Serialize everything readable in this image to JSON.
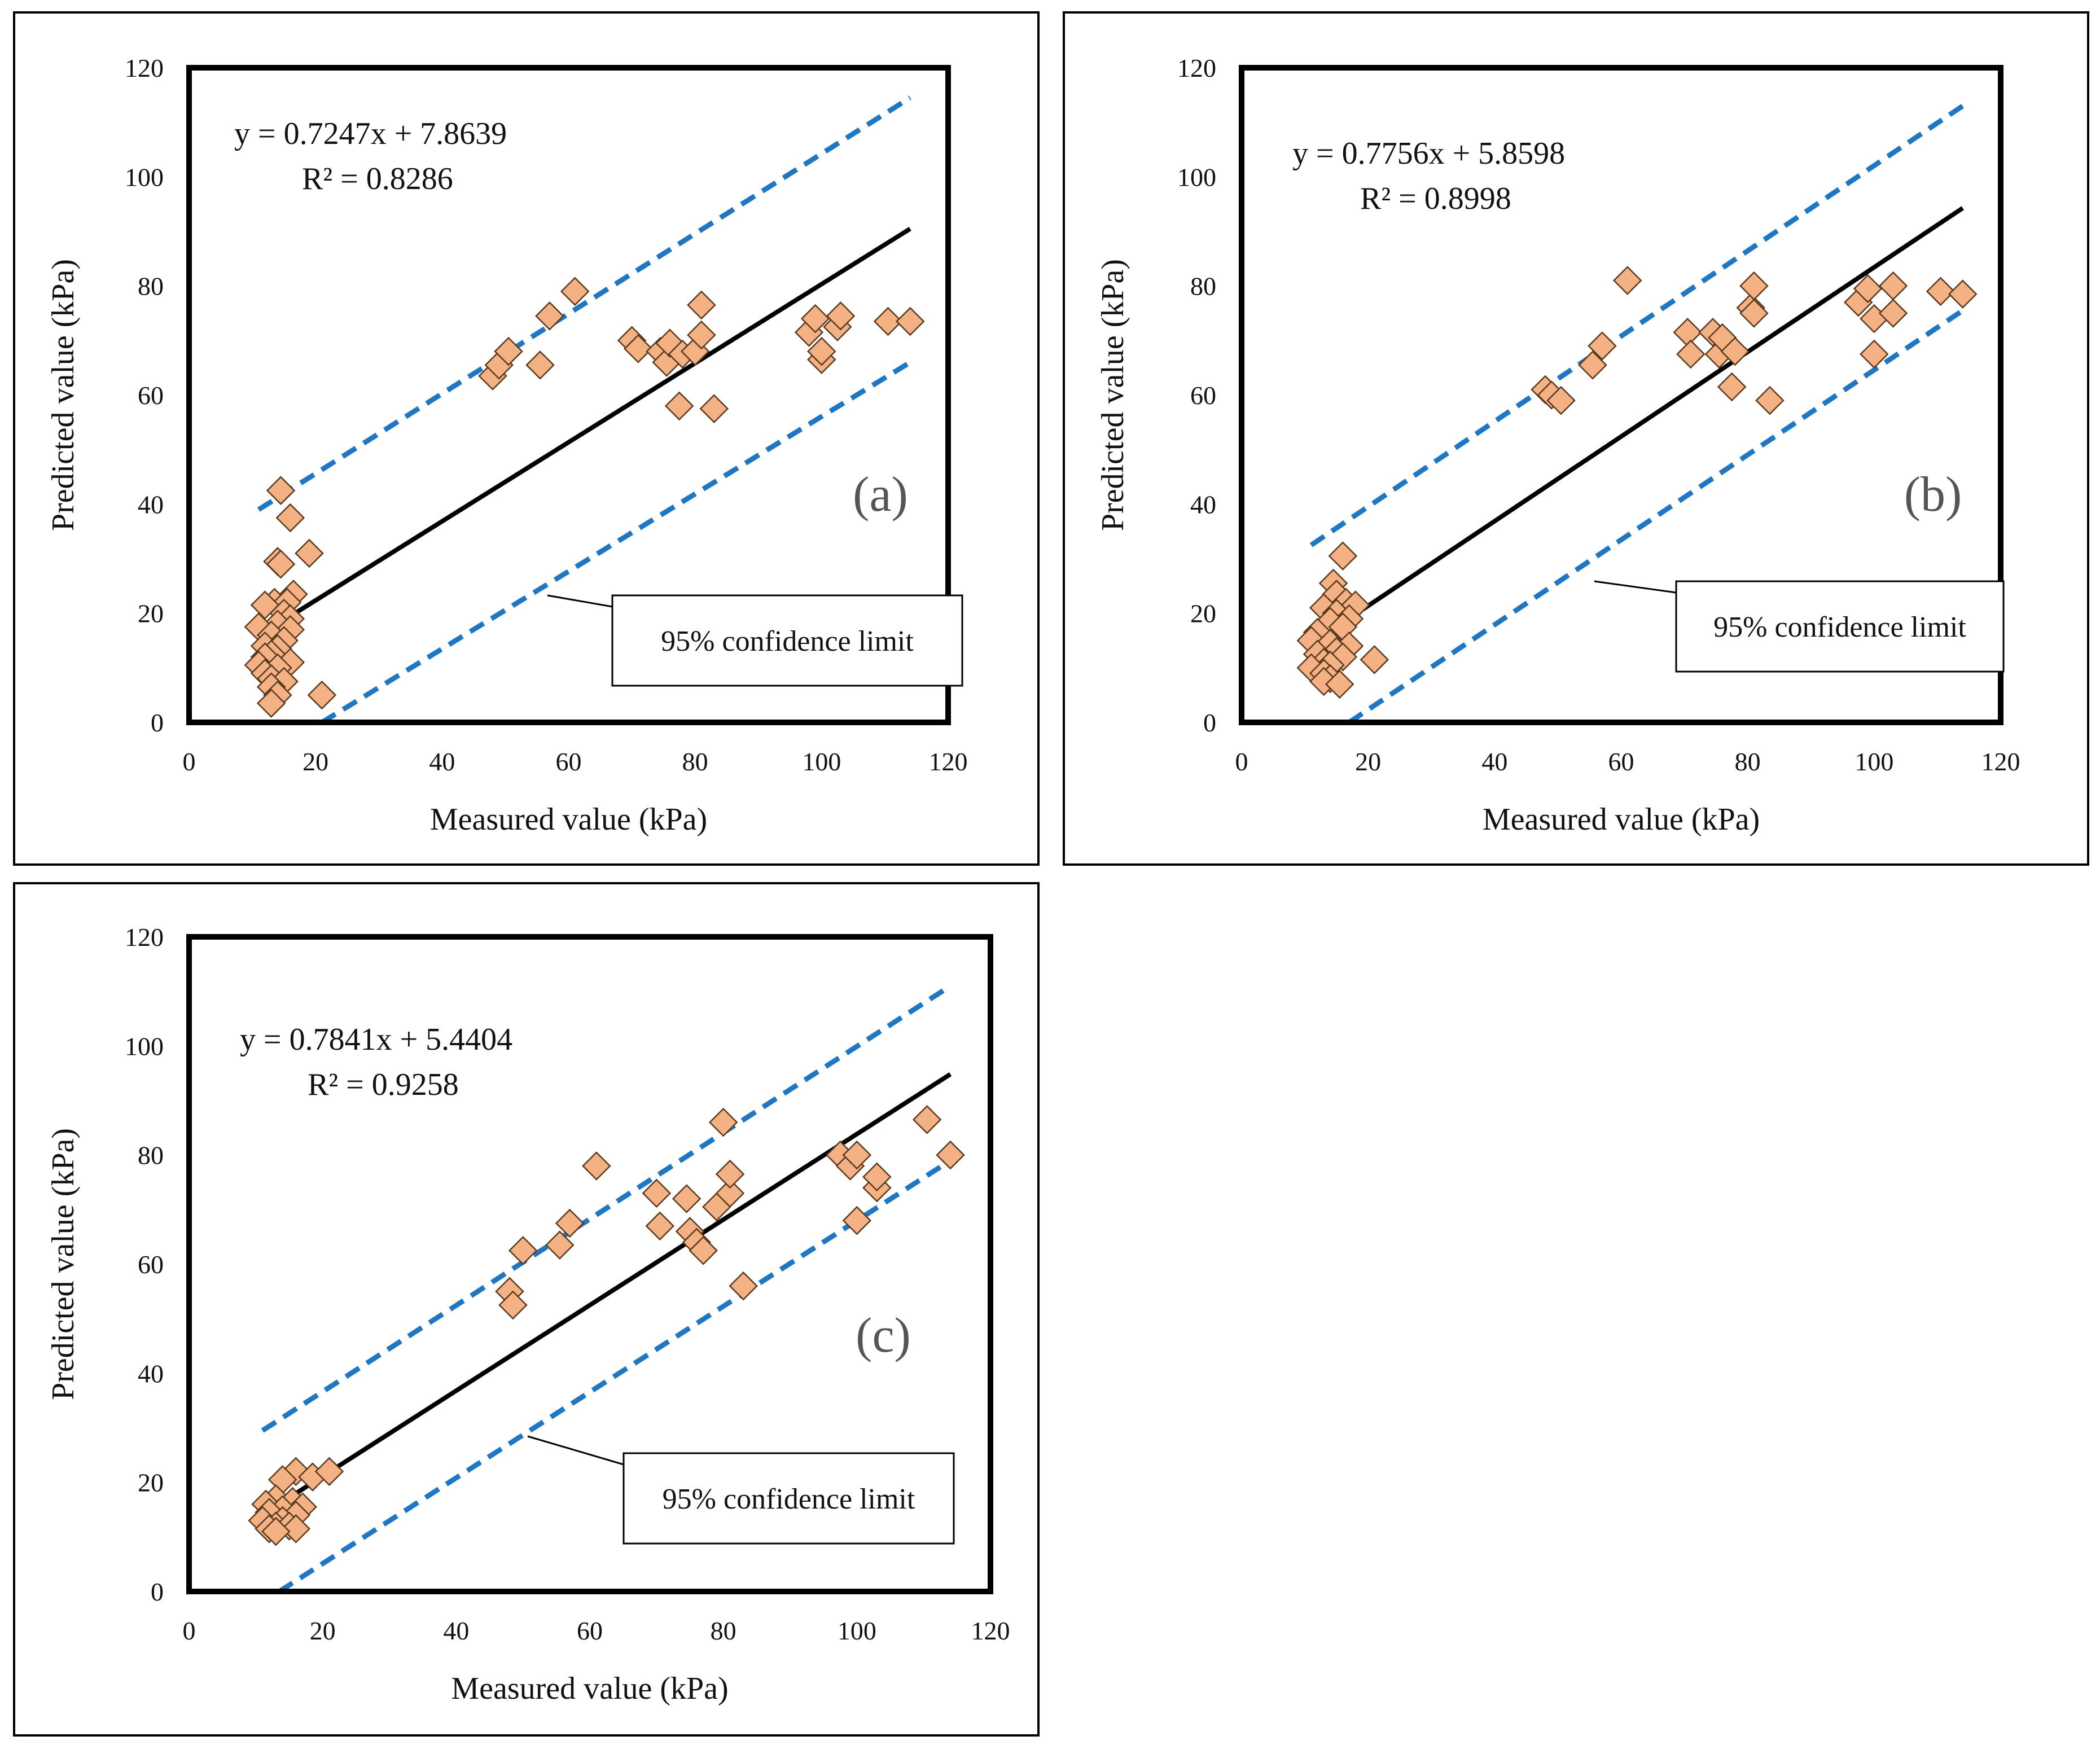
{
  "colors": {
    "point_fill": "#f4b183",
    "point_stroke": "#5a3a1e",
    "fit_line": "#000000",
    "confidence_line": "#1f77c4"
  },
  "chart_data": [
    {
      "type": "scatter",
      "panel": "(a)",
      "title": "",
      "xlabel": "Measured value (kPa)",
      "ylabel": "Predicted value (kPa)",
      "xlim": [
        0,
        120
      ],
      "ylim": [
        0,
        120
      ],
      "xticks": [
        "0",
        "20",
        "40",
        "60",
        "80",
        "100",
        "120"
      ],
      "yticks": [
        "0",
        "20",
        "40",
        "60",
        "80",
        "100",
        "120"
      ],
      "equation": "y = 0.7247x + 7.8639",
      "r_squared": "R² = 0.8286",
      "callout": "95% confidence limit",
      "fit": {
        "slope": 0.7247,
        "intercept": 7.8639,
        "x_range": [
          11,
          114
        ]
      },
      "upper_limit": {
        "x": [
          11,
          114
        ],
        "y": [
          39,
          114.5
        ]
      },
      "lower_limit": {
        "x": [
          21,
          114
        ],
        "y": [
          0,
          66
        ]
      },
      "points": [
        [
          14.5,
          42.5
        ],
        [
          16,
          37.5
        ],
        [
          19,
          31
        ],
        [
          14,
          29.5
        ],
        [
          14.5,
          29
        ],
        [
          16.5,
          23.5
        ],
        [
          13.5,
          22
        ],
        [
          15.5,
          22
        ],
        [
          12,
          21.5
        ],
        [
          15,
          20
        ],
        [
          16,
          19
        ],
        [
          14,
          18
        ],
        [
          11,
          17.5
        ],
        [
          16,
          17
        ],
        [
          13,
          16
        ],
        [
          15,
          15
        ],
        [
          12,
          14
        ],
        [
          14,
          13.5
        ],
        [
          13,
          12.5
        ],
        [
          12,
          12
        ],
        [
          16,
          11
        ],
        [
          11,
          10.5
        ],
        [
          14,
          10
        ],
        [
          12,
          9
        ],
        [
          13,
          8
        ],
        [
          15,
          7.5
        ],
        [
          13,
          6.5
        ],
        [
          14,
          5
        ],
        [
          13,
          3.5
        ],
        [
          21,
          5
        ],
        [
          48,
          63.5
        ],
        [
          49,
          65.5
        ],
        [
          50.5,
          68
        ],
        [
          55.5,
          65.5
        ],
        [
          57,
          74.5
        ],
        [
          61,
          79
        ],
        [
          70,
          70
        ],
        [
          71,
          68.5
        ],
        [
          74.5,
          68
        ],
        [
          75.5,
          66
        ],
        [
          76,
          69.5
        ],
        [
          78,
          67.5
        ],
        [
          80,
          68
        ],
        [
          81,
          71
        ],
        [
          81,
          76.5
        ],
        [
          77.5,
          58
        ],
        [
          83,
          57.5
        ],
        [
          98,
          71.5
        ],
        [
          99,
          74
        ],
        [
          100,
          66.5
        ],
        [
          100,
          68
        ],
        [
          102.5,
          72.5
        ],
        [
          103,
          74.5
        ],
        [
          110.5,
          73.5
        ],
        [
          114,
          73.5
        ]
      ]
    },
    {
      "type": "scatter",
      "panel": "(b)",
      "title": "",
      "xlabel": "Measured value (kPa)",
      "ylabel": "Predicted value (kPa)",
      "xlim": [
        0,
        120
      ],
      "ylim": [
        0,
        120
      ],
      "xticks": [
        "0",
        "20",
        "40",
        "60",
        "80",
        "100",
        "120"
      ],
      "yticks": [
        "0",
        "20",
        "40",
        "60",
        "80",
        "100",
        "120"
      ],
      "equation": "y = 0.7756x + 5.8598",
      "r_squared": "R² = 0.8998",
      "callout": "95% confidence limit",
      "fit": {
        "slope": 0.7756,
        "intercept": 5.8598,
        "x_range": [
          11,
          114
        ]
      },
      "upper_limit": {
        "x": [
          11,
          114
        ],
        "y": [
          32.5,
          113
        ]
      },
      "lower_limit": {
        "x": [
          17,
          114
        ],
        "y": [
          0,
          75.5
        ]
      },
      "points": [
        [
          16,
          30.5
        ],
        [
          14.5,
          25.5
        ],
        [
          15,
          23.5
        ],
        [
          16.5,
          22
        ],
        [
          18,
          21.5
        ],
        [
          13,
          21
        ],
        [
          15,
          20
        ],
        [
          17,
          19
        ],
        [
          14,
          18.5
        ],
        [
          16,
          17.5
        ],
        [
          12,
          16.5
        ],
        [
          11,
          15
        ],
        [
          14,
          14.5
        ],
        [
          17,
          14
        ],
        [
          15,
          13
        ],
        [
          12,
          12.5
        ],
        [
          16,
          12
        ],
        [
          13,
          11
        ],
        [
          14,
          10.5
        ],
        [
          11,
          10
        ],
        [
          13,
          9
        ],
        [
          14,
          8
        ],
        [
          13,
          7.5
        ],
        [
          15.5,
          7
        ],
        [
          21,
          11.5
        ],
        [
          48,
          61
        ],
        [
          49,
          60
        ],
        [
          50.5,
          59
        ],
        [
          55.5,
          65.5
        ],
        [
          57,
          69
        ],
        [
          61,
          81
        ],
        [
          70.5,
          71.5
        ],
        [
          71,
          67.5
        ],
        [
          74.5,
          71.5
        ],
        [
          75.5,
          67.5
        ],
        [
          76,
          70.5
        ],
        [
          78,
          68
        ],
        [
          77.5,
          61.5
        ],
        [
          80.5,
          76
        ],
        [
          81,
          75
        ],
        [
          81,
          80
        ],
        [
          83.5,
          59
        ],
        [
          97.5,
          77
        ],
        [
          99,
          79.5
        ],
        [
          100,
          74
        ],
        [
          100,
          67.5
        ],
        [
          103,
          80
        ],
        [
          103,
          75
        ],
        [
          110.5,
          79
        ],
        [
          114,
          78.5
        ]
      ]
    },
    {
      "type": "scatter",
      "panel": "(c)",
      "title": "",
      "xlabel": "Measured value (kPa)",
      "ylabel": "Predicted value (kPa)",
      "xlim": [
        0,
        120
      ],
      "ylim": [
        0,
        120
      ],
      "xticks": [
        "0",
        "20",
        "40",
        "60",
        "80",
        "100",
        "120"
      ],
      "yticks": [
        "0",
        "20",
        "40",
        "60",
        "80",
        "100",
        "120"
      ],
      "equation": "y = 0.7841x + 5.4404",
      "r_squared": "R² = 0.9258",
      "callout": "95% confidence limit",
      "fit": {
        "slope": 0.7841,
        "intercept": 5.4404,
        "x_range": [
          11,
          114
        ]
      },
      "upper_limit": {
        "x": [
          11,
          114
        ],
        "y": [
          29.5,
          111
        ]
      },
      "lower_limit": {
        "x": [
          13.5,
          114
        ],
        "y": [
          0,
          79
        ]
      },
      "points": [
        [
          16,
          22
        ],
        [
          18.5,
          21
        ],
        [
          21,
          22
        ],
        [
          14,
          20.5
        ],
        [
          13,
          17
        ],
        [
          15.5,
          16.5
        ],
        [
          11.5,
          16
        ],
        [
          17,
          15.5
        ],
        [
          14,
          15
        ],
        [
          12,
          14.5
        ],
        [
          16,
          14
        ],
        [
          11,
          13
        ],
        [
          14,
          13
        ],
        [
          13,
          12
        ],
        [
          15,
          12
        ],
        [
          12,
          11.5
        ],
        [
          16,
          11.5
        ],
        [
          13,
          11
        ],
        [
          48,
          55
        ],
        [
          48.5,
          52.5
        ],
        [
          50,
          62.5
        ],
        [
          55.5,
          63.5
        ],
        [
          57,
          67.5
        ],
        [
          61,
          78
        ],
        [
          70,
          73
        ],
        [
          70.5,
          67
        ],
        [
          74.5,
          72
        ],
        [
          75,
          66
        ],
        [
          76,
          64
        ],
        [
          77,
          62.5
        ],
        [
          79,
          70.5
        ],
        [
          80,
          86
        ],
        [
          81,
          73
        ],
        [
          81,
          76.5
        ],
        [
          83,
          56
        ],
        [
          97.5,
          80
        ],
        [
          99,
          78
        ],
        [
          100,
          80
        ],
        [
          100,
          68
        ],
        [
          103,
          74
        ],
        [
          103,
          76
        ],
        [
          110.5,
          86.5
        ],
        [
          114,
          80
        ]
      ]
    }
  ]
}
